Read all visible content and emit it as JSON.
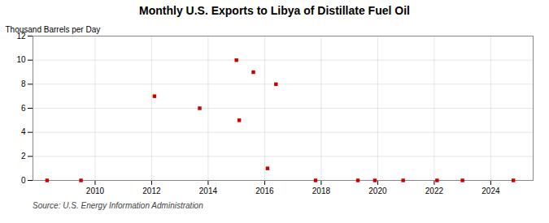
{
  "chart_data": {
    "type": "scatter",
    "title": "Monthly U.S. Exports to Libya of Distillate Fuel Oil",
    "ylabel": "Thousand Barrels per Day",
    "source": "Source: U.S. Energy Information Administration",
    "color": "#cc0000",
    "marker": "square",
    "grid": true,
    "x": [
      2008.3,
      2009.5,
      2012.1,
      2013.7,
      2015.0,
      2015.6,
      2015.1,
      2016.4,
      2016.1,
      2017.8,
      2019.3,
      2019.9,
      2020.9,
      2022.1,
      2023.0,
      2024.8
    ],
    "values": [
      0.0,
      0.0,
      7.0,
      6.0,
      10.0,
      9.0,
      5.0,
      8.0,
      1.0,
      0.0,
      0.0,
      0.0,
      0.0,
      0.0,
      0.0,
      0.0
    ],
    "xlim": [
      2007.8,
      2025.5
    ],
    "ylim": [
      0,
      12
    ],
    "xticks": [
      2010,
      2012,
      2014,
      2016,
      2018,
      2020,
      2022,
      2024
    ],
    "yticks": [
      0,
      2,
      4,
      6,
      8,
      10,
      12
    ]
  }
}
